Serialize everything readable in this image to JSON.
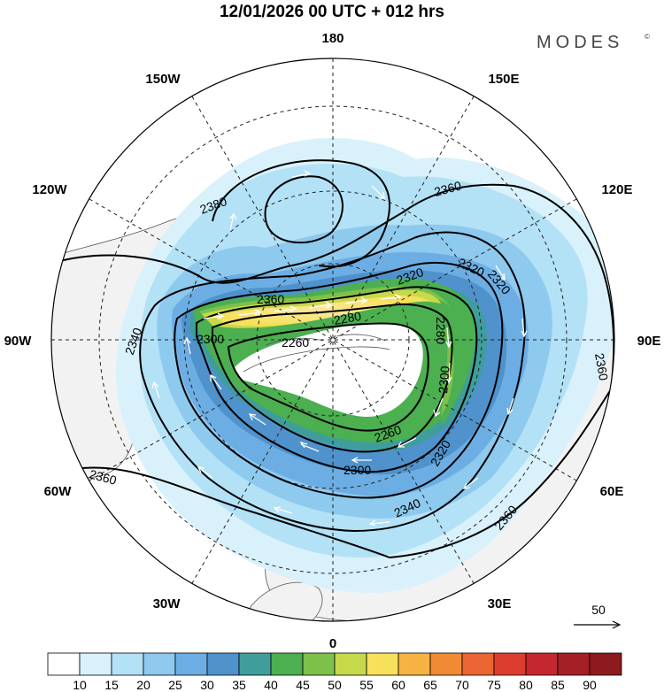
{
  "header": {
    "title": "12/01/2026  00 UTC  + 012 hrs",
    "brand": "MODES",
    "brand_mark": "©"
  },
  "map": {
    "projection": "polar-stereographic-north",
    "longitude_labels": [
      "180",
      "150E",
      "120E",
      "90E",
      "60E",
      "30E",
      "0",
      "30W",
      "60W",
      "90W",
      "120W",
      "150W"
    ],
    "contour_labels": [
      "2380",
      "2360",
      "2360",
      "2360",
      "2340",
      "2320",
      "2320",
      "2320",
      "2300",
      "2300",
      "2280",
      "2280",
      "2260",
      "2260",
      "2360",
      "2340",
      "2360",
      "2300",
      "2320"
    ],
    "land_color": "#f2f2f2",
    "contour_color": "#000000"
  },
  "reference_vector": {
    "value": "50"
  },
  "colorbar": {
    "ticks": [
      "10",
      "15",
      "20",
      "25",
      "30",
      "35",
      "40",
      "45",
      "50",
      "55",
      "60",
      "65",
      "70",
      "75",
      "80",
      "85",
      "90"
    ],
    "colors": [
      "#ffffff",
      "#d9f1fb",
      "#b3e1f6",
      "#8ec9ee",
      "#6caee3",
      "#4f92cc",
      "#3f9e9b",
      "#4caf50",
      "#7dc04a",
      "#c6d94b",
      "#f7e05a",
      "#f5b342",
      "#f08a35",
      "#ea6531",
      "#dc3d2f",
      "#c4272d",
      "#a51f27",
      "#8c1a1e"
    ]
  }
}
